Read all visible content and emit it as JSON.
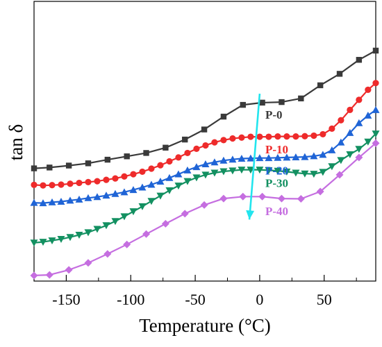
{
  "chart_data": {
    "type": "line",
    "xlabel": "Temperature (°C)",
    "ylabel": "tan δ",
    "xlim": [
      -175,
      90
    ],
    "ylim": [
      0,
      1
    ],
    "x_ticks": [
      -150,
      -100,
      -50,
      0,
      50
    ],
    "y_ticks_shown": false,
    "grid": false,
    "legend": "inline-labels",
    "series": [
      {
        "name": "P-0",
        "color": "#3a3a3a",
        "marker": "square",
        "x": [
          -175,
          -163,
          -148,
          -133,
          -118,
          -103,
          -88,
          -73,
          -58,
          -43,
          -28,
          -13,
          2,
          17,
          32,
          47,
          62,
          77,
          90
        ],
        "y": [
          0.403,
          0.406,
          0.413,
          0.421,
          0.434,
          0.446,
          0.458,
          0.477,
          0.506,
          0.542,
          0.588,
          0.63,
          0.638,
          0.64,
          0.653,
          0.7,
          0.741,
          0.791,
          0.824
        ]
      },
      {
        "name": "P-10",
        "color": "#ee2b2b",
        "marker": "circle",
        "x": [
          -175,
          -168,
          -161,
          -154,
          -147,
          -140,
          -133,
          -126,
          -119,
          -112,
          -105,
          -98,
          -91,
          -84,
          -77,
          -70,
          -63,
          -56,
          -49,
          -42,
          -35,
          -28,
          -21,
          -14,
          -7,
          0,
          7,
          14,
          21,
          28,
          35,
          42,
          49,
          56,
          63,
          70,
          77,
          84,
          90
        ],
        "y": [
          0.344,
          0.342,
          0.343,
          0.345,
          0.348,
          0.351,
          0.354,
          0.357,
          0.362,
          0.367,
          0.374,
          0.382,
          0.391,
          0.402,
          0.414,
          0.428,
          0.442,
          0.458,
          0.473,
          0.485,
          0.496,
          0.504,
          0.51,
          0.513,
          0.516,
          0.516,
          0.516,
          0.517,
          0.517,
          0.517,
          0.518,
          0.52,
          0.525,
          0.545,
          0.575,
          0.612,
          0.648,
          0.684,
          0.708
        ]
      },
      {
        "name": "P-20",
        "color": "#1f64d6",
        "marker": "triangle-up",
        "x": [
          -175,
          -168,
          -161,
          -154,
          -147,
          -140,
          -133,
          -126,
          -119,
          -112,
          -105,
          -98,
          -91,
          -84,
          -77,
          -70,
          -63,
          -56,
          -49,
          -42,
          -35,
          -28,
          -21,
          -14,
          -7,
          0,
          7,
          14,
          21,
          28,
          35,
          42,
          49,
          56,
          63,
          70,
          77,
          84,
          90
        ],
        "y": [
          0.28,
          0.279,
          0.282,
          0.284,
          0.288,
          0.292,
          0.297,
          0.301,
          0.306,
          0.312,
          0.318,
          0.326,
          0.335,
          0.345,
          0.356,
          0.369,
          0.382,
          0.396,
          0.408,
          0.418,
          0.425,
          0.431,
          0.435,
          0.438,
          0.439,
          0.44,
          0.44,
          0.441,
          0.442,
          0.443,
          0.444,
          0.447,
          0.452,
          0.468,
          0.496,
          0.53,
          0.565,
          0.592,
          0.612
        ]
      },
      {
        "name": "P-30",
        "color": "#139061",
        "marker": "triangle-down",
        "x": [
          -175,
          -168,
          -161,
          -154,
          -147,
          -140,
          -133,
          -126,
          -119,
          -112,
          -105,
          -98,
          -91,
          -84,
          -77,
          -70,
          -63,
          -56,
          -49,
          -42,
          -35,
          -28,
          -21,
          -14,
          -7,
          0,
          7,
          14,
          21,
          28,
          35,
          42,
          49,
          56,
          63,
          70,
          77,
          84,
          90
        ],
        "y": [
          0.137,
          0.14,
          0.145,
          0.15,
          0.157,
          0.165,
          0.174,
          0.186,
          0.199,
          0.214,
          0.231,
          0.249,
          0.267,
          0.286,
          0.305,
          0.324,
          0.341,
          0.357,
          0.37,
          0.38,
          0.387,
          0.392,
          0.395,
          0.398,
          0.398,
          0.398,
          0.396,
          0.394,
          0.391,
          0.387,
          0.384,
          0.383,
          0.39,
          0.41,
          0.432,
          0.453,
          0.472,
          0.498,
          0.527
        ]
      },
      {
        "name": "P-40",
        "color": "#c56ee0",
        "marker": "diamond",
        "x": [
          -175,
          -163,
          -148,
          -133,
          -118,
          -103,
          -88,
          -73,
          -58,
          -43,
          -28,
          -13,
          2,
          17,
          32,
          47,
          62,
          77,
          90
        ],
        "y": [
          0.02,
          0.022,
          0.04,
          0.065,
          0.097,
          0.131,
          0.168,
          0.205,
          0.241,
          0.272,
          0.295,
          0.302,
          0.302,
          0.295,
          0.294,
          0.32,
          0.38,
          0.442,
          0.493
        ]
      }
    ],
    "annotation": {
      "type": "arrow",
      "color": "#22e5ee",
      "from": {
        "x": 0,
        "y": 0.67
      },
      "to": {
        "x": -8,
        "y": 0.22
      }
    }
  }
}
